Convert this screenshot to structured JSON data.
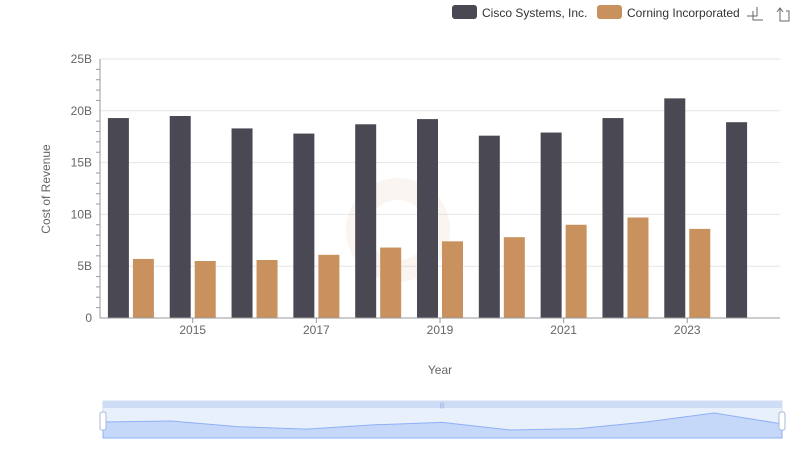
{
  "chart_data": {
    "type": "bar",
    "xlabel": "Year",
    "ylabel": "Cost of Revenue",
    "ylim": [
      0,
      25000000000
    ],
    "yticks": [
      "0",
      "5B",
      "10B",
      "15B",
      "20B",
      "25B"
    ],
    "xticks": [
      "2015",
      "2017",
      "2019",
      "2021",
      "2023"
    ],
    "categories": [
      "2014",
      "2015",
      "2016",
      "2017",
      "2018",
      "2019",
      "2020",
      "2021",
      "2022",
      "2023",
      "2024"
    ],
    "grid": true,
    "legend_position": "top-right",
    "series": [
      {
        "name": "Cisco Systems, Inc.",
        "color": "#4a4953",
        "values": [
          19300000000,
          19500000000,
          18300000000,
          17800000000,
          18700000000,
          19200000000,
          17600000000,
          17900000000,
          19300000000,
          21200000000,
          18900000000
        ]
      },
      {
        "name": "Corning Incorporated",
        "color": "#c8915e",
        "values": [
          5700000000,
          5500000000,
          5600000000,
          6100000000,
          6800000000,
          7400000000,
          7800000000,
          9000000000,
          9700000000,
          8600000000,
          null
        ]
      }
    ]
  },
  "toolbar": {
    "zoom_icon": "zoom-select-icon",
    "restore_icon": "restore-icon"
  },
  "datazoom": {
    "range": [
      0,
      100
    ],
    "fill_color": "#d6e3fa",
    "line_color": "#8fb0f7"
  }
}
